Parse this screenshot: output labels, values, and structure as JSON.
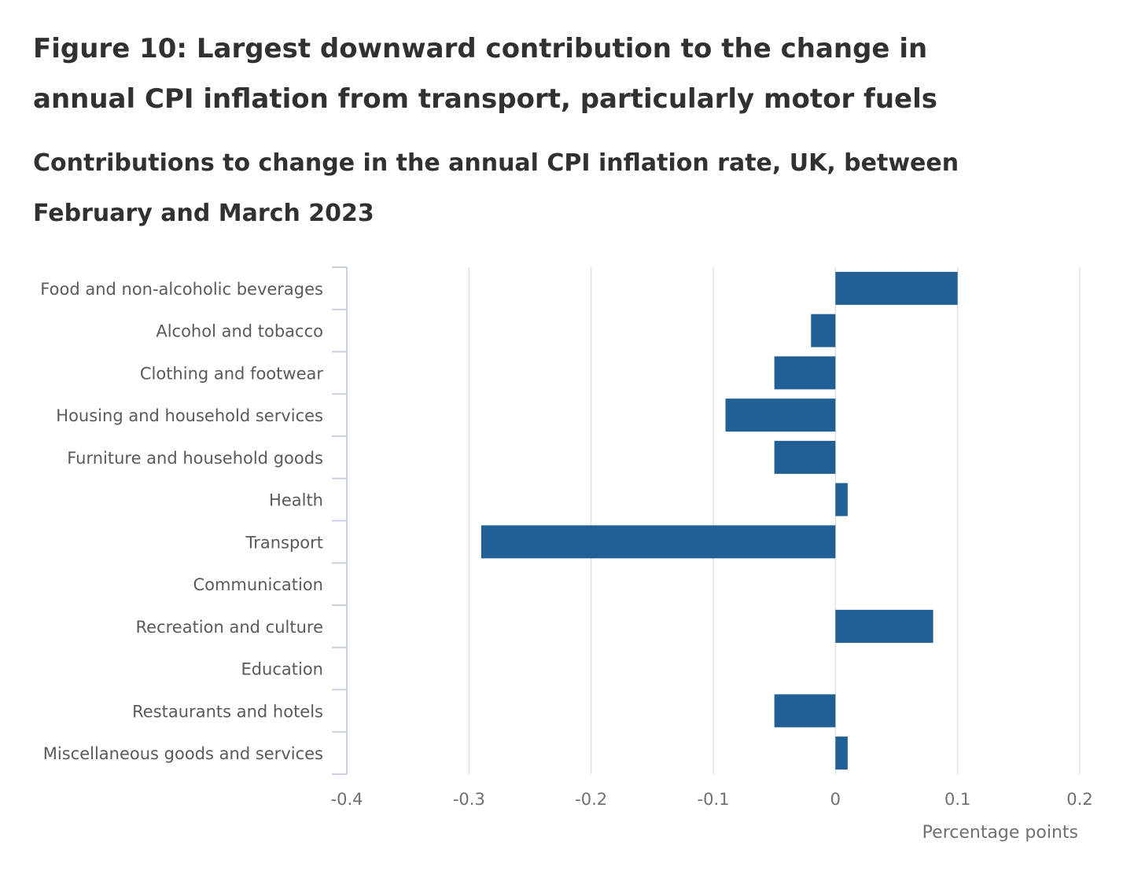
{
  "title": "Figure 10: Largest downward contribution to the change in annual CPI inflation from transport, particularly motor fuels",
  "subtitle": "Contributions to change in the annual CPI inflation rate, UK, between February and March 2023",
  "colors": {
    "bar": "#206095",
    "grid": "#e2e2e3",
    "axis": "#c8d1e0"
  },
  "chart_data": {
    "type": "bar",
    "orientation": "horizontal",
    "categories": [
      "Food and non-alcoholic beverages",
      "Alcohol and tobacco",
      "Clothing and footwear",
      "Housing and household services",
      "Furniture and household goods",
      "Health",
      "Transport",
      "Communication",
      "Recreation and culture",
      "Education",
      "Restaurants and hotels",
      "Miscellaneous goods and services"
    ],
    "values": [
      0.1,
      -0.02,
      -0.05,
      -0.09,
      -0.05,
      0.01,
      -0.29,
      0.0,
      0.08,
      0.0,
      -0.05,
      0.01
    ],
    "xlim": [
      -0.4,
      0.2
    ],
    "xticks": [
      "-0.4",
      "-0.3",
      "-0.2",
      "-0.1",
      "0",
      "0.1",
      "0.2"
    ],
    "xlabel": "Percentage points",
    "grid": true
  }
}
